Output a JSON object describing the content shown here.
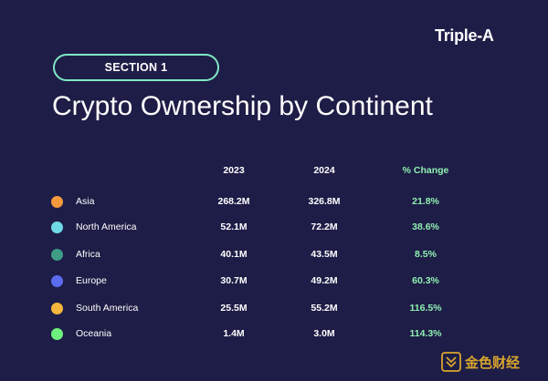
{
  "brand": "Triple-A",
  "section_label": "SECTION 1",
  "title": "Crypto Ownership by Continent",
  "columns": [
    "2023",
    "2024",
    "% Change"
  ],
  "chart_data": {
    "type": "table",
    "title": "Crypto Ownership by Continent",
    "columns": [
      "2023",
      "2024",
      "% Change"
    ],
    "rows": [
      {
        "region": "Asia",
        "color": "#f59a3c",
        "y2023": "268.2M",
        "y2024": "326.8M",
        "change": "21.8%"
      },
      {
        "region": "North America",
        "color": "#6fd9e6",
        "y2023": "52.1M",
        "y2024": "72.2M",
        "change": "38.6%"
      },
      {
        "region": "Africa",
        "color": "#3f9d86",
        "y2023": "40.1M",
        "y2024": "43.5M",
        "change": "8.5%"
      },
      {
        "region": "Europe",
        "color": "#5b6cf0",
        "y2023": "30.7M",
        "y2024": "49.2M",
        "change": "60.3%"
      },
      {
        "region": "South America",
        "color": "#f6b63d",
        "y2023": "25.5M",
        "y2024": "55.2M",
        "change": "116.5%"
      },
      {
        "region": "Oceania",
        "color": "#6ef07f",
        "y2023": "1.4M",
        "y2024": "3.0M",
        "change": "114.3%"
      }
    ]
  },
  "watermark": {
    "text": "金色财经",
    "color": "#d8a52d"
  }
}
